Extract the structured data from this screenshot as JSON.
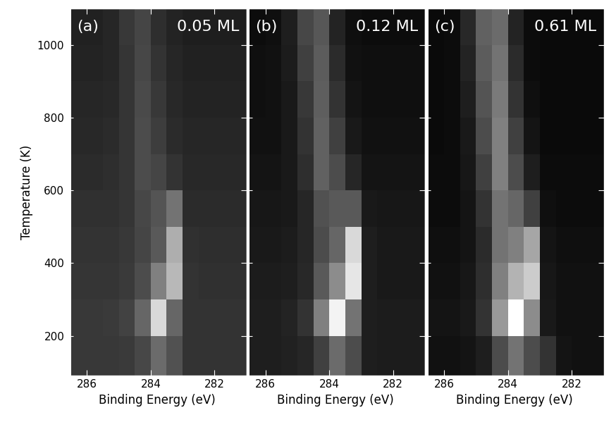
{
  "chart_data": [
    {
      "type": "heatmap",
      "label": "(a)",
      "title": "0.05 ML",
      "xlabel": "Binding Energy (eV)",
      "ylabel": "Temperature (K)",
      "xlim": [
        286.6,
        281
      ],
      "ylim": [
        90,
        1100
      ],
      "xticks": [
        286,
        284,
        282
      ],
      "yticks": [
        200,
        400,
        600,
        800,
        1000
      ],
      "tick_labels": true,
      "color": "gray",
      "color_range": [
        0,
        1
      ],
      "x_edges": [
        286.5,
        286,
        285.5,
        285,
        284.5,
        284,
        283.5,
        283,
        282.5,
        282,
        281.5,
        281
      ],
      "y_edges": [
        90,
        200,
        300,
        400,
        500,
        600,
        700,
        800,
        900,
        1000,
        1100
      ],
      "cells": [
        [
          0.22,
          0.22,
          0.22,
          0.23,
          0.28,
          0.42,
          0.32,
          0.2,
          0.2,
          0.2,
          0.2
        ],
        [
          0.22,
          0.22,
          0.23,
          0.26,
          0.4,
          0.85,
          0.4,
          0.2,
          0.2,
          0.2,
          0.2
        ],
        [
          0.21,
          0.21,
          0.21,
          0.23,
          0.3,
          0.5,
          0.72,
          0.2,
          0.19,
          0.19,
          0.19
        ],
        [
          0.2,
          0.2,
          0.2,
          0.22,
          0.27,
          0.35,
          0.68,
          0.19,
          0.18,
          0.18,
          0.18
        ],
        [
          0.19,
          0.19,
          0.19,
          0.21,
          0.28,
          0.33,
          0.45,
          0.17,
          0.17,
          0.17,
          0.17
        ],
        [
          0.17,
          0.17,
          0.18,
          0.21,
          0.3,
          0.27,
          0.2,
          0.16,
          0.16,
          0.16,
          0.16
        ],
        [
          0.16,
          0.16,
          0.17,
          0.21,
          0.3,
          0.24,
          0.17,
          0.15,
          0.15,
          0.15,
          0.15
        ],
        [
          0.15,
          0.15,
          0.16,
          0.21,
          0.29,
          0.22,
          0.16,
          0.14,
          0.14,
          0.14,
          0.14
        ],
        [
          0.14,
          0.14,
          0.15,
          0.21,
          0.28,
          0.2,
          0.15,
          0.13,
          0.13,
          0.13,
          0.13
        ],
        [
          0.13,
          0.13,
          0.15,
          0.22,
          0.27,
          0.18,
          0.14,
          0.12,
          0.12,
          0.12,
          0.12
        ]
      ]
    },
    {
      "type": "heatmap",
      "label": "(b)",
      "title": "0.12 ML",
      "xlabel": "Binding Energy (eV)",
      "xlim": [
        286.6,
        281
      ],
      "ylim": [
        90,
        1100
      ],
      "xticks": [
        286,
        284,
        282
      ],
      "yticks": [
        200,
        400,
        600,
        800,
        1000
      ],
      "tick_labels": "x",
      "color": "gray",
      "color_range": [
        0,
        1
      ],
      "x_edges": [
        286.5,
        286,
        285.5,
        285,
        284.5,
        284,
        283.5,
        283,
        282.5,
        282,
        281.5,
        281
      ],
      "y_edges": [
        90,
        200,
        300,
        400,
        500,
        600,
        700,
        800,
        900,
        1000,
        1100
      ],
      "cells": [
        [
          0.12,
          0.12,
          0.13,
          0.15,
          0.25,
          0.42,
          0.3,
          0.12,
          0.11,
          0.11,
          0.11
        ],
        [
          0.12,
          0.12,
          0.14,
          0.2,
          0.5,
          0.95,
          0.45,
          0.12,
          0.11,
          0.11,
          0.11
        ],
        [
          0.11,
          0.11,
          0.12,
          0.16,
          0.35,
          0.55,
          0.9,
          0.12,
          0.1,
          0.1,
          0.1
        ],
        [
          0.1,
          0.1,
          0.11,
          0.15,
          0.3,
          0.4,
          0.85,
          0.12,
          0.1,
          0.1,
          0.1
        ],
        [
          0.09,
          0.09,
          0.1,
          0.15,
          0.32,
          0.35,
          0.35,
          0.1,
          0.09,
          0.09,
          0.09
        ],
        [
          0.08,
          0.08,
          0.1,
          0.18,
          0.38,
          0.3,
          0.15,
          0.08,
          0.08,
          0.08,
          0.08
        ],
        [
          0.07,
          0.07,
          0.1,
          0.2,
          0.38,
          0.25,
          0.1,
          0.07,
          0.07,
          0.07,
          0.07
        ],
        [
          0.06,
          0.07,
          0.1,
          0.22,
          0.37,
          0.2,
          0.08,
          0.06,
          0.06,
          0.06,
          0.06
        ],
        [
          0.06,
          0.07,
          0.11,
          0.25,
          0.36,
          0.17,
          0.07,
          0.06,
          0.06,
          0.06,
          0.06
        ],
        [
          0.05,
          0.06,
          0.12,
          0.28,
          0.34,
          0.14,
          0.06,
          0.05,
          0.05,
          0.05,
          0.05
        ]
      ]
    },
    {
      "type": "heatmap",
      "label": "(c)",
      "title": "0.61 ML",
      "xlabel": "Binding Energy (eV)",
      "xlim": [
        286.6,
        281
      ],
      "ylim": [
        90,
        1100
      ],
      "xticks": [
        286,
        284,
        282
      ],
      "yticks": [
        200,
        400,
        600,
        800,
        1000
      ],
      "tick_labels": "x",
      "color": "gray",
      "color_range": [
        0,
        1
      ],
      "x_edges": [
        286.5,
        286,
        285.5,
        285,
        284.5,
        284,
        283.5,
        283,
        282.5,
        282,
        281.5,
        281
      ],
      "y_edges": [
        90,
        200,
        300,
        400,
        500,
        600,
        700,
        800,
        900,
        1000,
        1100
      ],
      "cells": [
        [
          0.07,
          0.07,
          0.08,
          0.12,
          0.3,
          0.45,
          0.3,
          0.2,
          0.08,
          0.07,
          0.07
        ],
        [
          0.08,
          0.08,
          0.1,
          0.2,
          0.6,
          1.0,
          0.55,
          0.1,
          0.07,
          0.07,
          0.07
        ],
        [
          0.07,
          0.07,
          0.09,
          0.18,
          0.5,
          0.7,
          0.8,
          0.09,
          0.07,
          0.07,
          0.07
        ],
        [
          0.06,
          0.06,
          0.08,
          0.17,
          0.45,
          0.5,
          0.65,
          0.08,
          0.06,
          0.06,
          0.06
        ],
        [
          0.05,
          0.05,
          0.08,
          0.2,
          0.45,
          0.4,
          0.25,
          0.06,
          0.05,
          0.05,
          0.05
        ],
        [
          0.05,
          0.05,
          0.09,
          0.25,
          0.5,
          0.3,
          0.12,
          0.05,
          0.05,
          0.05,
          0.05
        ],
        [
          0.04,
          0.05,
          0.1,
          0.3,
          0.5,
          0.25,
          0.08,
          0.04,
          0.04,
          0.04,
          0.04
        ],
        [
          0.04,
          0.05,
          0.12,
          0.33,
          0.48,
          0.2,
          0.06,
          0.04,
          0.04,
          0.04,
          0.04
        ],
        [
          0.04,
          0.05,
          0.14,
          0.36,
          0.45,
          0.17,
          0.05,
          0.04,
          0.04,
          0.04,
          0.04
        ],
        [
          0.04,
          0.05,
          0.16,
          0.38,
          0.42,
          0.14,
          0.05,
          0.04,
          0.04,
          0.04,
          0.04
        ]
      ]
    }
  ]
}
